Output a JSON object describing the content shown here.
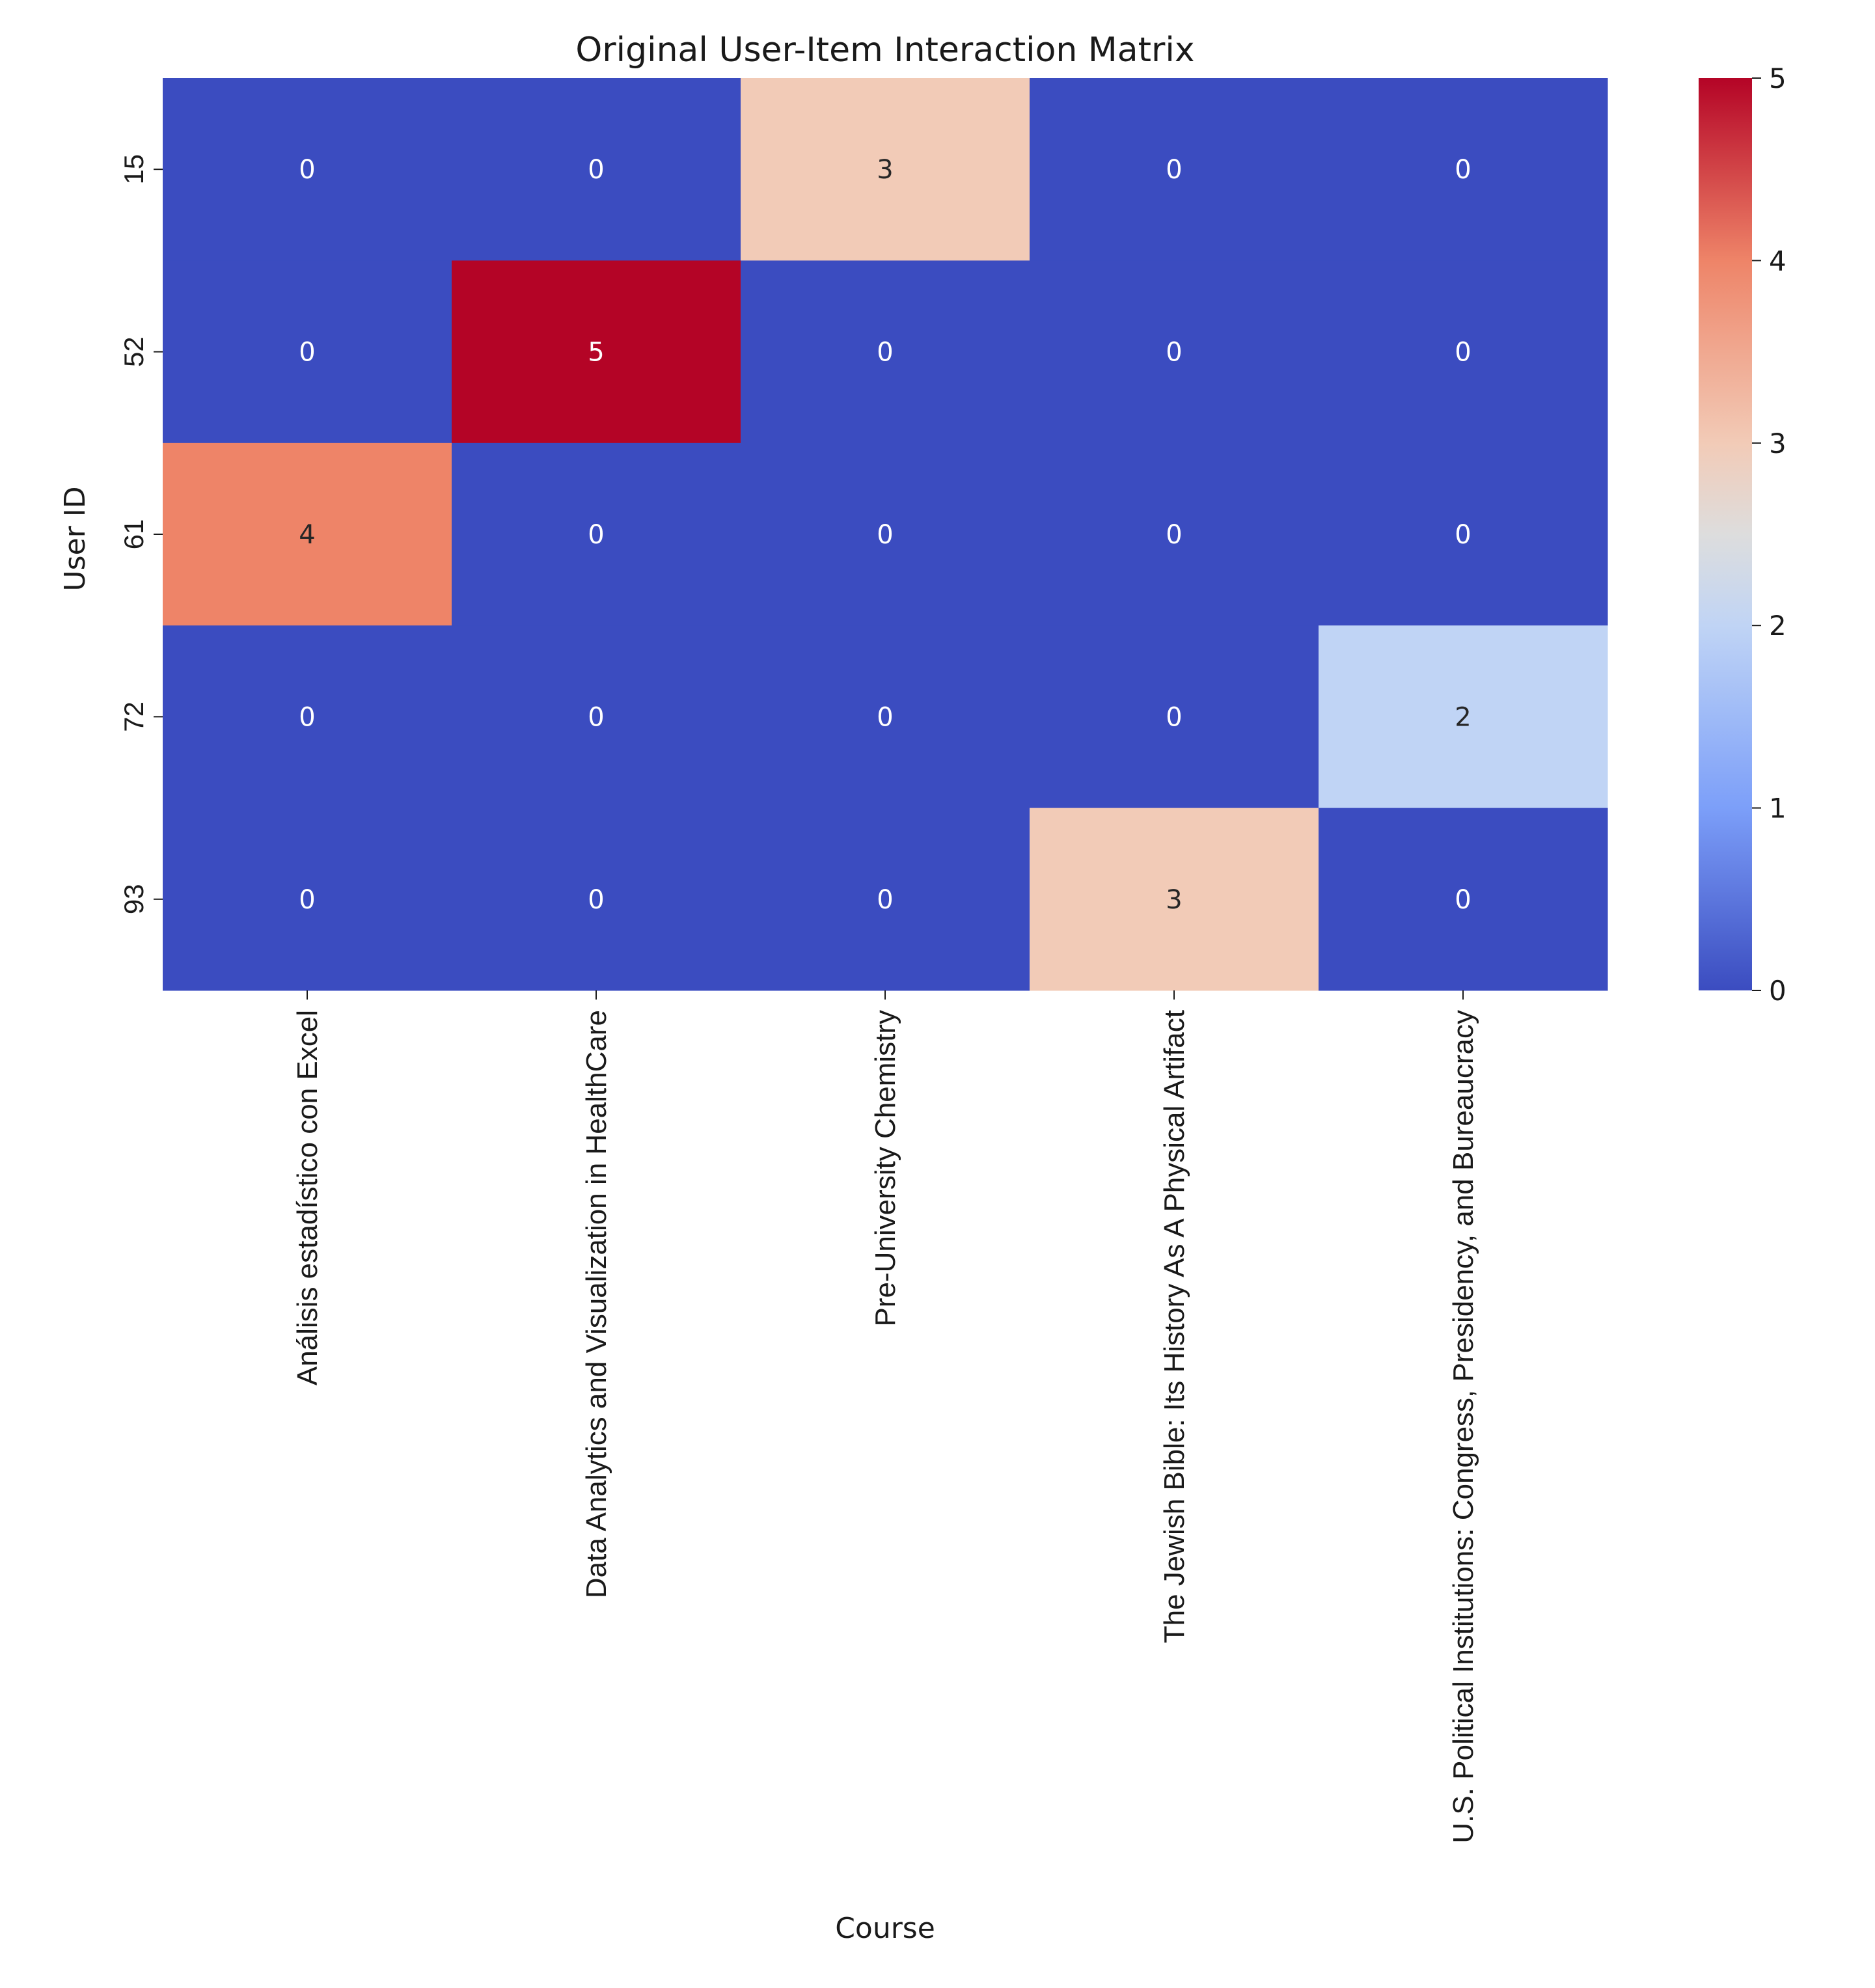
{
  "chart_data": {
    "type": "heatmap",
    "title": "Original User-Item Interaction Matrix",
    "xlabel": "Course",
    "ylabel": "User ID",
    "rows": [
      "15",
      "52",
      "61",
      "72",
      "93"
    ],
    "columns": [
      "Análisis estadístico con Excel",
      "Data Analytics and Visualization in HealthCare",
      "Pre-University Chemistry",
      "The Jewish Bible: Its History As A Physical Artifact",
      "U.S. Political Institutions: Congress, Presidency, and Bureaucracy"
    ],
    "values": [
      [
        0,
        0,
        3,
        0,
        0
      ],
      [
        0,
        5,
        0,
        0,
        0
      ],
      [
        4,
        0,
        0,
        0,
        0
      ],
      [
        0,
        0,
        0,
        0,
        2
      ],
      [
        0,
        0,
        0,
        3,
        0
      ]
    ],
    "colormap": "coolwarm",
    "colorbar_range": [
      0,
      5
    ],
    "colorbar_ticks": [
      "0",
      "1",
      "2",
      "3",
      "4",
      "5"
    ],
    "annotated": true,
    "grid": false
  }
}
